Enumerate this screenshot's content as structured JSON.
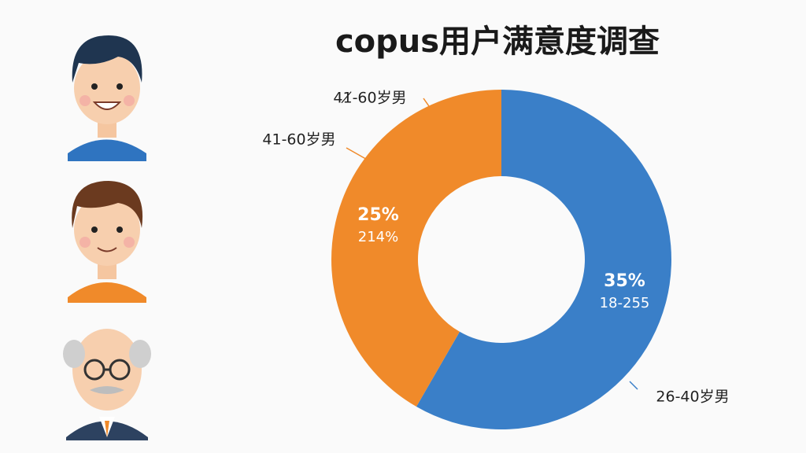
{
  "chart_data": {
    "type": "donut",
    "title": "copus用户满意度调查",
    "categories": [
      "26-40岁男",
      "41-60岁男"
    ],
    "values": [
      35,
      25
    ],
    "value_labels": [
      "35%",
      "25%"
    ],
    "sub_labels": [
      "18-255",
      "214%"
    ],
    "colors": [
      "#3a7fc8",
      "#f08a2a"
    ],
    "annotation": "41̸-60岁男"
  }
}
